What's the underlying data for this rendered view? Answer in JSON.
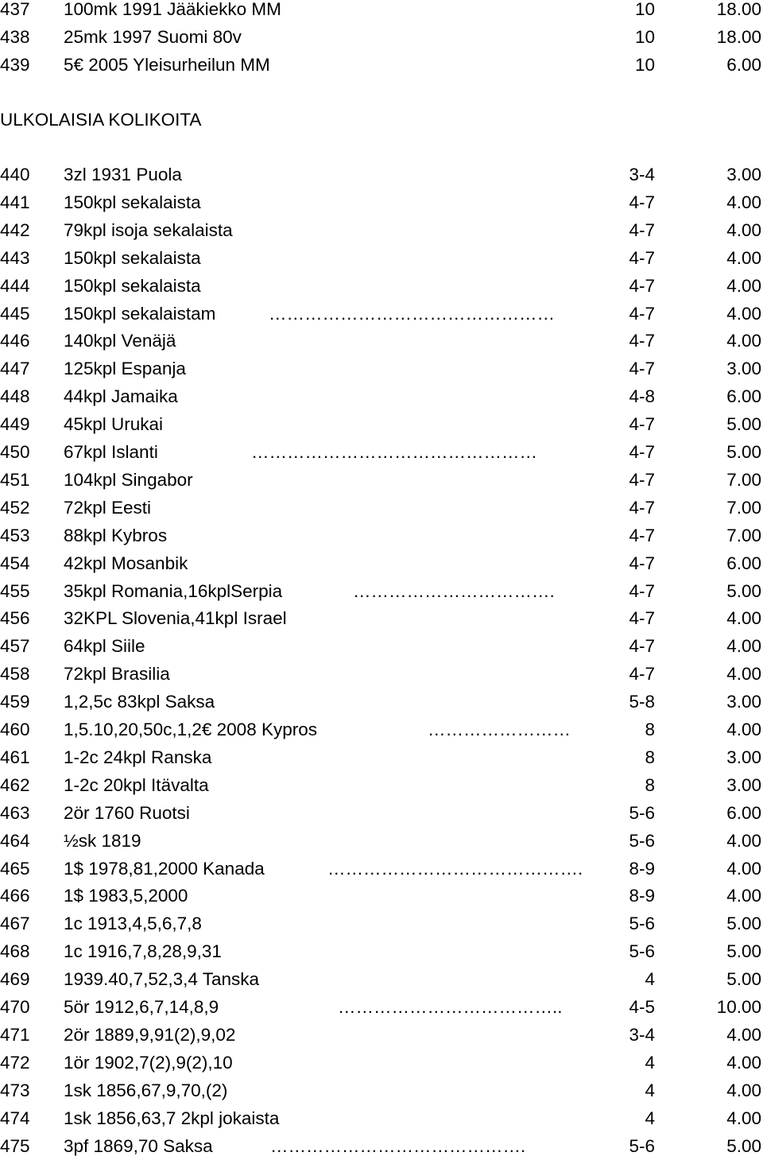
{
  "heading": "ULKOLAISIA KOLIKOITA",
  "rows_top": [
    {
      "num": "437",
      "desc": "100mk 1991 Jääkiekko MM",
      "dots": "",
      "cond": "10",
      "price": "18.00"
    },
    {
      "num": "438",
      "desc": "25mk 1997 Suomi 80v",
      "dots": "",
      "cond": "10",
      "price": "18.00"
    },
    {
      "num": "439",
      "desc": "5€ 2005 Yleisurheilun MM",
      "dots": "",
      "cond": "10",
      "price": "6.00"
    }
  ],
  "rows": [
    {
      "num": "440",
      "desc": "3zl 1931 Puola",
      "dots": "",
      "cond": "3-4",
      "price": "3.00"
    },
    {
      "num": "441",
      "desc": "150kpl sekalaista",
      "dots": "",
      "cond": "4-7",
      "price": "4.00"
    },
    {
      "num": "442",
      "desc": "79kpl isoja sekalaista",
      "dots": "",
      "cond": "4-7",
      "price": "4.00"
    },
    {
      "num": "443",
      "desc": "150kpl sekalaista",
      "dots": "",
      "cond": "4-7",
      "price": "4.00"
    },
    {
      "num": "444",
      "desc": "150kpl sekalaista",
      "dots": "",
      "cond": "4-7",
      "price": "4.00"
    },
    {
      "num": "445",
      "desc": "150kpl sekalaistam",
      "dots": "…………………………………………",
      "cond": "4-7",
      "price": "4.00"
    },
    {
      "num": "446",
      "desc": "140kpl Venäjä",
      "dots": "",
      "cond": "4-7",
      "price": "4.00"
    },
    {
      "num": "447",
      "desc": "125kpl Espanja",
      "dots": "",
      "cond": "4-7",
      "price": "3.00"
    },
    {
      "num": "448",
      "desc": "44kpl Jamaika",
      "dots": "",
      "cond": "4-8",
      "price": "6.00"
    },
    {
      "num": "449",
      "desc": "45kpl Urukai",
      "dots": "",
      "cond": "4-7",
      "price": "5.00"
    },
    {
      "num": "450",
      "desc": "67kpl Islanti",
      "dots": "…………………………………………",
      "cond": "4-7",
      "price": "5.00"
    },
    {
      "num": "451",
      "desc": "104kpl Singabor",
      "dots": "",
      "cond": "4-7",
      "price": "7.00"
    },
    {
      "num": "452",
      "desc": "72kpl Eesti",
      "dots": "",
      "cond": "4-7",
      "price": "7.00"
    },
    {
      "num": "453",
      "desc": "88kpl Kybros",
      "dots": "",
      "cond": "4-7",
      "price": "7.00"
    },
    {
      "num": "454",
      "desc": "42kpl Mosanbik",
      "dots": "",
      "cond": "4-7",
      "price": "6.00"
    },
    {
      "num": "455",
      "desc": "35kpl Romania,16kplSerpia",
      "dots": "…………………………….",
      "cond": "4-7",
      "price": "5.00"
    },
    {
      "num": "456",
      "desc": "32KPL Slovenia,41kpl Israel",
      "dots": "",
      "cond": "4-7",
      "price": "4.00"
    },
    {
      "num": "457",
      "desc": "64kpl Siile",
      "dots": "",
      "cond": "4-7",
      "price": "4.00"
    },
    {
      "num": "458",
      "desc": "72kpl Brasilia",
      "dots": "",
      "cond": "4-7",
      "price": "4.00"
    },
    {
      "num": "459",
      "desc": "1,2,5c 83kpl Saksa",
      "dots": "",
      "cond": "5-8",
      "price": "3.00"
    },
    {
      "num": "460",
      "desc": "1,5.10,20,50c,1,2€ 2008 Kypros",
      "dots": "……………………",
      "cond": "8",
      "price": "4.00"
    },
    {
      "num": "461",
      "desc": "1-2c 24kpl Ranska",
      "dots": "",
      "cond": "8",
      "price": "3.00"
    },
    {
      "num": "462",
      "desc": "1-2c 20kpl Itävalta",
      "dots": "",
      "cond": "8",
      "price": "3.00"
    },
    {
      "num": "463",
      "desc": "2ör 1760 Ruotsi",
      "dots": "",
      "cond": "5-6",
      "price": "6.00"
    },
    {
      "num": "464",
      "desc": "½sk 1819",
      "dots": "",
      "cond": "5-6",
      "price": "4.00"
    },
    {
      "num": "465",
      "desc": "1$ 1978,81,2000 Kanada",
      "dots": "…………………………………….",
      "cond": "8-9",
      "price": "4.00"
    },
    {
      "num": "466",
      "desc": "1$ 1983,5,2000",
      "dots": "",
      "cond": "8-9",
      "price": "4.00"
    },
    {
      "num": "467",
      "desc": "1c 1913,4,5,6,7,8",
      "dots": "",
      "cond": "5-6",
      "price": "5.00"
    },
    {
      "num": "468",
      "desc": "1c 1916,7,8,28,9,31",
      "dots": "",
      "cond": "5-6",
      "price": "5.00"
    },
    {
      "num": "469",
      "desc": "1939.40,7,52,3,4 Tanska",
      "dots": "",
      "cond": "4",
      "price": "5.00"
    },
    {
      "num": "470",
      "desc": "5ör 1912,6,7,14,8,9",
      "dots": "………………………………..",
      "cond": "4-5",
      "price": "10.00"
    },
    {
      "num": "471",
      "desc": "2ör 1889,9,91(2),9,02",
      "dots": "",
      "cond": "3-4",
      "price": "4.00"
    },
    {
      "num": "472",
      "desc": "1ör 1902,7(2),9(2),10",
      "dots": "",
      "cond": "4",
      "price": "4.00"
    },
    {
      "num": "473",
      "desc": "1sk 1856,67,9,70,(2)",
      "dots": "",
      "cond": "4",
      "price": "4.00"
    },
    {
      "num": "474",
      "desc": "1sk 1856,63,7 2kpl jokaista",
      "dots": "",
      "cond": "4",
      "price": "4.00"
    },
    {
      "num": "475",
      "desc": "3pf 1869,70 Saksa",
      "dots": "…………………………………….",
      "cond": "5-6",
      "price": "5.00"
    }
  ]
}
